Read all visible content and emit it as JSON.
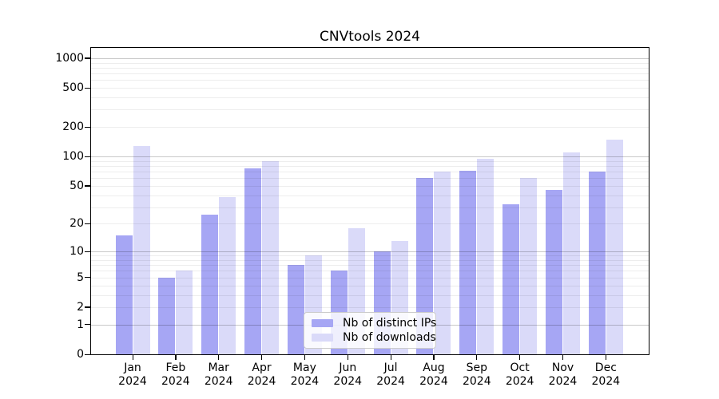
{
  "chart_data": {
    "type": "bar",
    "title": "CNVtools 2024",
    "categories": [
      "Jan",
      "Feb",
      "Mar",
      "Apr",
      "May",
      "Jun",
      "Jul",
      "Aug",
      "Sep",
      "Oct",
      "Nov",
      "Dec"
    ],
    "year_label": "2024",
    "series": [
      {
        "name": "Nb of distinct IPs",
        "color": "#a6a6f4",
        "values": [
          15,
          5,
          25,
          75,
          7,
          6,
          10,
          60,
          72,
          32,
          45,
          70
        ]
      },
      {
        "name": "Nb of downloads",
        "color": "#dadaf9",
        "values": [
          127,
          6,
          38,
          90,
          9,
          18,
          13,
          70,
          95,
          60,
          110,
          150
        ]
      }
    ],
    "yscale": "log10(1+value)",
    "ylim": [
      0,
      1270
    ],
    "yticks": [
      1000,
      500,
      200,
      100,
      50,
      20,
      10,
      5,
      2,
      1,
      0
    ],
    "major_gridlines": [
      1,
      10,
      100,
      1000
    ],
    "minor_gridlines": [
      2,
      3,
      4,
      5,
      6,
      7,
      8,
      9,
      20,
      30,
      40,
      50,
      60,
      70,
      80,
      90,
      200,
      300,
      400,
      500,
      600,
      700,
      800,
      900
    ],
    "grid_colors": {
      "major": "#c9c9c9",
      "minor": "#ededed"
    },
    "legend_position": "lower center",
    "xlabel": "",
    "ylabel": ""
  }
}
